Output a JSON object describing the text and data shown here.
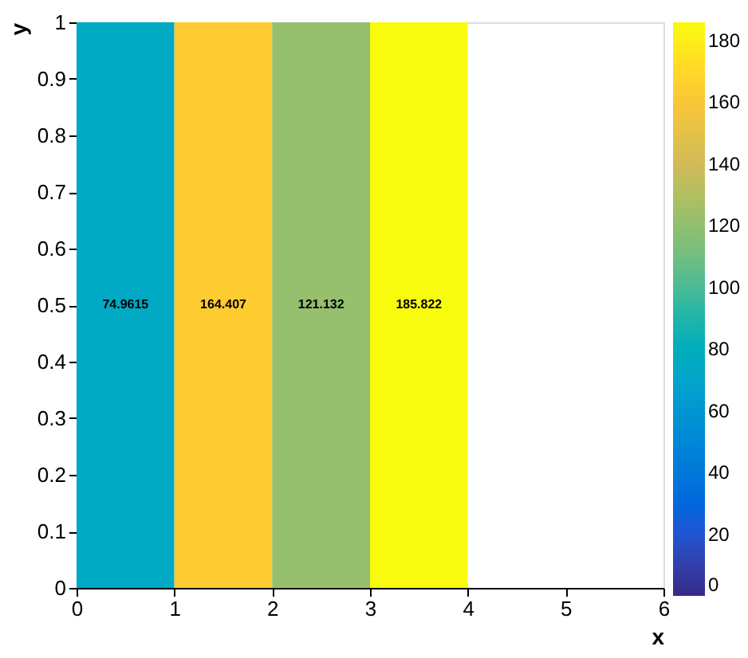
{
  "chart_data": {
    "type": "heatmap",
    "xlabel": "x",
    "ylabel": "y",
    "cells": [
      [
        74.9615,
        164.407,
        121.132,
        185.822,
        null,
        null
      ]
    ],
    "xlim": [
      0,
      6
    ],
    "xticks": [
      0,
      1,
      2,
      3,
      4,
      5,
      6
    ],
    "ylim": [
      0,
      1
    ],
    "yticks": [
      0,
      0.1,
      0.2,
      0.3,
      0.4,
      0.5,
      0.6,
      0.7,
      0.8,
      0.9,
      1
    ],
    "clim": [
      0,
      185.822
    ],
    "cticks": [
      0,
      20,
      40,
      60,
      80,
      100,
      120,
      140,
      160,
      180
    ],
    "data_labels": true,
    "grid": false
  }
}
